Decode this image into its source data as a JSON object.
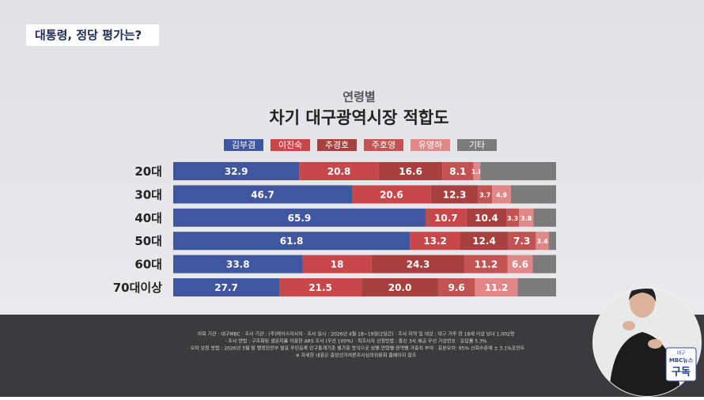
{
  "header": {
    "title": "대통령, 정당 평가는?"
  },
  "chart_data": {
    "type": "stacked-bar-horizontal",
    "subtitle": "연령별",
    "title": "차기 대구광역시장 적합도",
    "categories": [
      "20대",
      "30대",
      "40대",
      "50대",
      "60대",
      "70대이상"
    ],
    "xlim": [
      0,
      100
    ],
    "series": [
      {
        "name": "김부겸",
        "color": "#40569e",
        "values": [
          32.9,
          46.7,
          65.9,
          61.8,
          33.8,
          27.7
        ]
      },
      {
        "name": "이진숙",
        "color": "#c8474b",
        "values": [
          20.8,
          20.6,
          10.7,
          13.2,
          18,
          21.5
        ]
      },
      {
        "name": "추경호",
        "color": "#a8403f",
        "values": [
          16.6,
          12.3,
          10.4,
          12.4,
          24.3,
          20
        ],
        "value_labels": [
          "16.6",
          "12.3",
          "10.4",
          "12.4",
          "24.3",
          "20.0"
        ]
      },
      {
        "name": "주호영",
        "color": "#c25353",
        "values": [
          8.1,
          3.7,
          3.3,
          7.3,
          11.2,
          9.6
        ]
      },
      {
        "name": "유영하",
        "color": "#e28787",
        "values": [
          1.8,
          4.9,
          3.8,
          3.4,
          6.6,
          11.2
        ]
      },
      {
        "name": "기타",
        "color": "#7b7b7b",
        "values": [
          19.8,
          11.8,
          5.9,
          1.9,
          6.1,
          10
        ],
        "show_value_labels": false
      }
    ]
  },
  "footer": {
    "lines": [
      "의뢰 기관 : 대구MBC · 조사 기관 : (주)에이스리서치 · 조사 일시 : 2026년 4월 18~19일(2일간) · 조사 지역 및 대상 : 대구 거주 만 18세 이상 남녀 1,002명",
      "· 조사 방법 : 구조화된 설문지를 이용한 ARS 조사 (무선 100%) · 피조사자 선정방법 : 통신 3사 제공 무선 가상번호 · 응답률 5.3%",
      "· 오차 보정 방법 : 2026년 3월 말 행정안전부 발표 주민등록 인구통계기준 셀가중 방식으로 성별·연령별·권역별 가중치 부여 · 표본오차: 95% 신뢰수준에 ± 3.1%포인트",
      "※ 자세한 내용은 중앙선거여론조사심의위원회 홈페이지 참조"
    ]
  },
  "badge": {
    "line1": "대구",
    "line2": "MBC뉴스",
    "line3": "구독"
  }
}
